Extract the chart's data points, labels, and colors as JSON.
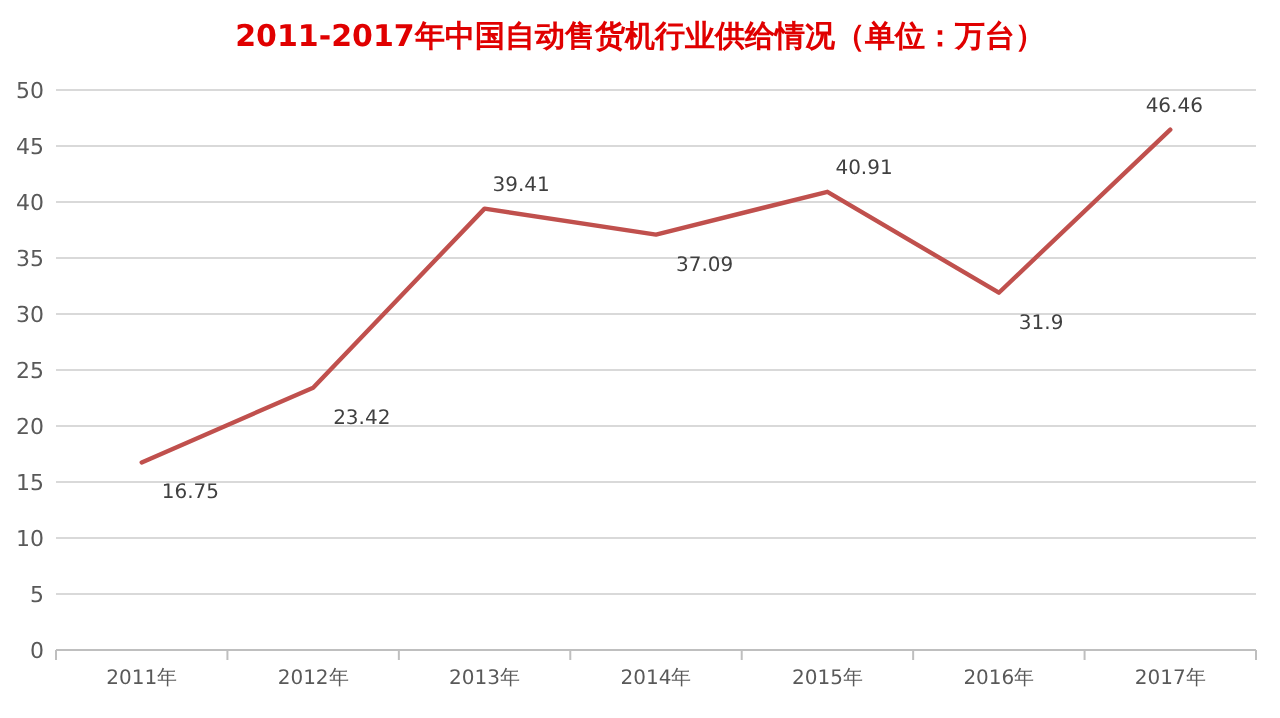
{
  "chart_data": {
    "type": "line",
    "title": "2011-2017年中国自动售货机行业供给情况（单位：万台）",
    "categories": [
      "2011年",
      "2012年",
      "2013年",
      "2014年",
      "2015年",
      "2016年",
      "2017年"
    ],
    "series": [
      {
        "color": "#c0504d",
        "values": [
          16.75,
          23.42,
          39.41,
          37.09,
          40.91,
          31.9,
          46.46
        ]
      }
    ],
    "ylim": [
      0,
      50
    ],
    "yticks": [
      0,
      5,
      10,
      15,
      20,
      25,
      30,
      35,
      40,
      45,
      50
    ],
    "grid": "y",
    "data_labels": true,
    "marker": "none",
    "line_style": "solid"
  }
}
